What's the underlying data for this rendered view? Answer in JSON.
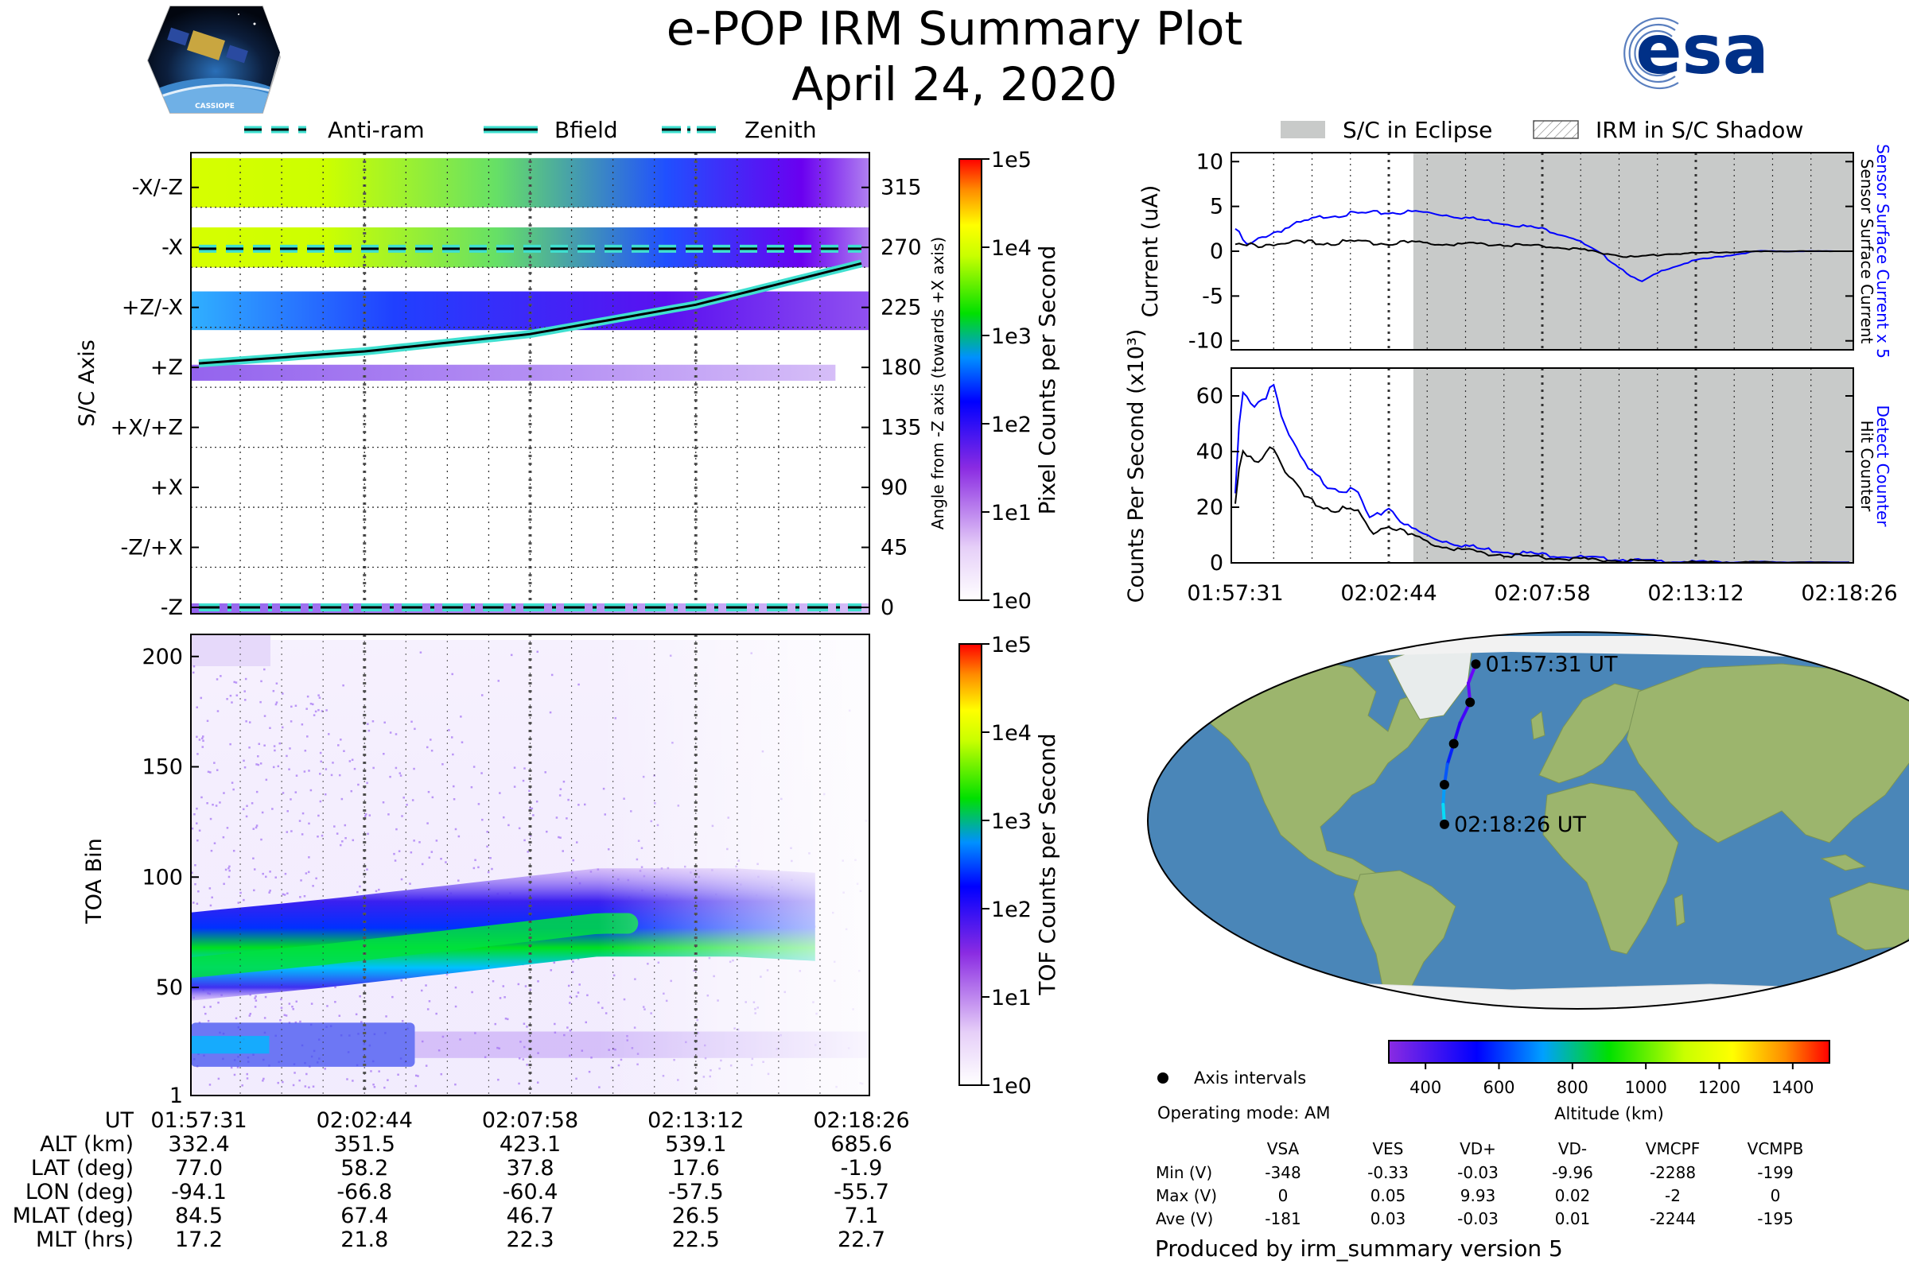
{
  "header": {
    "title": "e-POP IRM Summary Plot",
    "date": "April 24, 2020",
    "mission_logo_text": "CASSIOPE",
    "agency_logo_text": "esa"
  },
  "colors": {
    "bfield_line": "#000000",
    "bfield_outline": "#40e0d0",
    "eclipse_fill": "#c8cac9",
    "surface_current_x5": "#0000ff",
    "surface_current": "#000000",
    "detect_counter": "#0000ff",
    "hit_counter": "#000000",
    "ocean": "#4a86b8",
    "land": "#9cb56d",
    "ice": "#f2f2f2"
  },
  "time_axis": {
    "ticks": [
      "01:57:31",
      "02:02:44",
      "02:07:58",
      "02:13:12",
      "02:18:26"
    ],
    "tick_fractions": [
      0,
      0.25,
      0.5,
      0.75,
      1.0
    ]
  },
  "chart_data": [
    {
      "id": "sc-axis-panel",
      "type": "heatmap",
      "legend": [
        "Anti-ram",
        "Bfield",
        "Zenith"
      ],
      "ylabel": "S/C Axis",
      "y_categories": [
        "-X/-Z",
        "-X",
        "+Z/-X",
        "+Z",
        "+X/+Z",
        "+X",
        "-Z/+X",
        "-Z"
      ],
      "y2_label": "Angle from -Z axis (towards +X axis)",
      "y2_ticks": [
        315,
        270,
        225,
        180,
        135,
        90,
        45,
        0
      ],
      "y2_range": [
        0,
        337.5
      ],
      "colorbar": {
        "label": "Pixel Counts per Second",
        "ticks": [
          "1e5",
          "1e4",
          "1e3",
          "1e2",
          "1e1",
          "1e0"
        ]
      },
      "series": [
        {
          "name": "Bfield",
          "style": "solid",
          "t": [
            0,
            0.25,
            0.5,
            0.75,
            1.0
          ],
          "angle": [
            183,
            192,
            205,
            227,
            258
          ]
        },
        {
          "name": "Anti-ram",
          "style": "dashed",
          "t": [
            0,
            1.0
          ],
          "angle": [
            269,
            269
          ]
        },
        {
          "name": "Zenith",
          "style": "dash-dot",
          "t": [
            0,
            1.0
          ],
          "angle": [
            0,
            0
          ]
        }
      ],
      "intensity_bands": [
        {
          "angle_range": [
            300,
            337
          ],
          "level": "high"
        },
        {
          "angle_range": [
            255,
            285
          ],
          "level": "high"
        },
        {
          "angle_range": [
            208,
            237
          ],
          "level": "medium"
        },
        {
          "angle_range": [
            170,
            182
          ],
          "level": "low"
        },
        {
          "angle_range": [
            -10,
            3
          ],
          "level": "low"
        }
      ]
    },
    {
      "id": "toa-panel",
      "type": "heatmap",
      "ylabel": "TOA Bin",
      "yticks": [
        1,
        50,
        100,
        150,
        200
      ],
      "ylim": [
        1,
        210
      ],
      "colorbar": {
        "label": "TOF Counts per Second",
        "ticks": [
          "1e5",
          "1e4",
          "1e3",
          "1e2",
          "1e1",
          "1e0"
        ]
      },
      "main_band": {
        "t": [
          0,
          0.2,
          0.4,
          0.6,
          0.8,
          0.92
        ],
        "center": [
          62,
          68,
          75,
          82,
          82,
          80
        ]
      },
      "secondary_band": {
        "t": [
          0,
          0.33
        ],
        "center": [
          24,
          26
        ]
      }
    },
    {
      "id": "current-panel",
      "type": "line",
      "ylabel": "Current (uA)",
      "yticks": [
        10,
        5,
        0,
        -5,
        -10
      ],
      "ylim": [
        -11,
        11
      ],
      "legend": [
        "S/C in Eclipse",
        "IRM in S/C Shadow"
      ],
      "eclipse_start_fraction": 0.29,
      "series": [
        {
          "name": "Sensor Surface Current x 5",
          "t": [
            0,
            0.02,
            0.05,
            0.1,
            0.15,
            0.2,
            0.25,
            0.3,
            0.35,
            0.4,
            0.45,
            0.5,
            0.55,
            0.6,
            0.63,
            0.66,
            0.7,
            0.75,
            0.8,
            0.85,
            0.9,
            1.0
          ],
          "values": [
            2.5,
            0.5,
            1.8,
            3.0,
            4.0,
            4.2,
            4.3,
            4.4,
            4.0,
            3.5,
            3.0,
            2.5,
            1.5,
            -0.5,
            -2.0,
            -3.5,
            -2.0,
            -1.0,
            -0.5,
            0.0,
            0.0,
            0.0
          ]
        },
        {
          "name": "Sensor Surface Current",
          "t": [
            0,
            0.05,
            0.1,
            0.2,
            0.3,
            0.4,
            0.5,
            0.55,
            0.6,
            0.65,
            0.7,
            0.8,
            0.9,
            1.0
          ],
          "values": [
            0.5,
            0.8,
            0.9,
            1.0,
            0.9,
            0.8,
            0.6,
            0.3,
            -0.2,
            -0.7,
            -0.3,
            -0.1,
            0.0,
            0.0
          ]
        }
      ]
    },
    {
      "id": "counts-panel",
      "type": "line",
      "ylabel": "Counts Per Second (x10³)",
      "yticks": [
        60,
        40,
        20,
        0
      ],
      "ylim": [
        0,
        70
      ],
      "eclipse_start_fraction": 0.29,
      "series": [
        {
          "name": "Detect Counter",
          "t": [
            0,
            0.01,
            0.03,
            0.05,
            0.06,
            0.08,
            0.1,
            0.12,
            0.15,
            0.2,
            0.22,
            0.25,
            0.28,
            0.32,
            0.4,
            0.5,
            0.6,
            0.7,
            0.8,
            1.0
          ],
          "values": [
            25,
            62,
            55,
            60,
            66,
            50,
            40,
            33,
            28,
            25,
            15,
            20,
            13,
            9,
            5,
            3,
            1.5,
            0.5,
            0.3,
            0.2
          ]
        },
        {
          "name": "Hit Counter",
          "t": [
            0,
            0.01,
            0.03,
            0.05,
            0.06,
            0.08,
            0.1,
            0.12,
            0.15,
            0.2,
            0.22,
            0.25,
            0.28,
            0.32,
            0.4,
            0.5,
            0.6,
            0.7,
            0.8,
            1.0
          ],
          "values": [
            20,
            40,
            36,
            40,
            43,
            33,
            27,
            22,
            20,
            18,
            11,
            14,
            10,
            7,
            3.5,
            2,
            1,
            0.3,
            0.2,
            0.1
          ]
        }
      ]
    }
  ],
  "map": {
    "start_label": "01:57:31 UT",
    "end_label": "02:18:26 UT",
    "track_lon": [
      -94.1,
      -80.5,
      -66.8,
      -63.6,
      -60.4,
      -59.0,
      -57.5,
      -56.6,
      -55.7
    ],
    "track_lat": [
      77.0,
      67.6,
      58.2,
      48.0,
      37.8,
      27.7,
      17.6,
      7.9,
      -1.9
    ],
    "track_alt_km": [
      332.4,
      342.0,
      351.5,
      387.3,
      423.1,
      481.1,
      539.1,
      612.3,
      685.6
    ],
    "axis_interval_points": [
      {
        "lon": -94.1,
        "lat": 77.0
      },
      {
        "lon": -66.8,
        "lat": 58.2
      },
      {
        "lon": -60.4,
        "lat": 37.8
      },
      {
        "lon": -57.5,
        "lat": 17.6
      },
      {
        "lon": -55.7,
        "lat": -1.9
      }
    ]
  },
  "altitude_colorbar": {
    "label": "Altitude (km)",
    "ticks": [
      "400",
      "600",
      "800",
      "1000",
      "1200",
      "1400"
    ],
    "tick_values": [
      400,
      600,
      800,
      1000,
      1200,
      1400
    ],
    "range": [
      300,
      1500
    ]
  },
  "ephemeris": {
    "row_labels": [
      "UT",
      "ALT (km)",
      "LAT (deg)",
      "LON (deg)",
      "MLAT (deg)",
      "MLT (hrs)"
    ],
    "columns": [
      [
        "01:57:31",
        "332.4",
        "77.0",
        "-94.1",
        "84.5",
        "17.2"
      ],
      [
        "02:02:44",
        "351.5",
        "58.2",
        "-66.8",
        "67.4",
        "21.8"
      ],
      [
        "02:07:58",
        "423.1",
        "37.8",
        "-60.4",
        "46.7",
        "22.3"
      ],
      [
        "02:13:12",
        "539.1",
        "17.6",
        "-57.5",
        "26.5",
        "22.5"
      ],
      [
        "02:18:26",
        "685.6",
        "-1.9",
        "-55.7",
        "7.1",
        "22.7"
      ]
    ]
  },
  "info": {
    "axis_intervals_label": "Axis intervals",
    "operating_mode": "Operating mode: AM",
    "voltage_headers": [
      "VSA",
      "VES",
      "VD+",
      "VD-",
      "VMCPF",
      "VCMPB"
    ],
    "voltage_rows": [
      {
        "label": "Min (V)",
        "values": [
          "-348",
          "-0.33",
          "-0.03",
          "-9.96",
          "-2288",
          "-199"
        ]
      },
      {
        "label": "Max (V)",
        "values": [
          "0",
          "0.05",
          "9.93",
          "0.02",
          "-2",
          "0"
        ]
      },
      {
        "label": "Ave (V)",
        "values": [
          "-181",
          "0.03",
          "-0.03",
          "0.01",
          "-2244",
          "-195"
        ]
      }
    ],
    "footer": "Produced by irm_summary version 5"
  }
}
